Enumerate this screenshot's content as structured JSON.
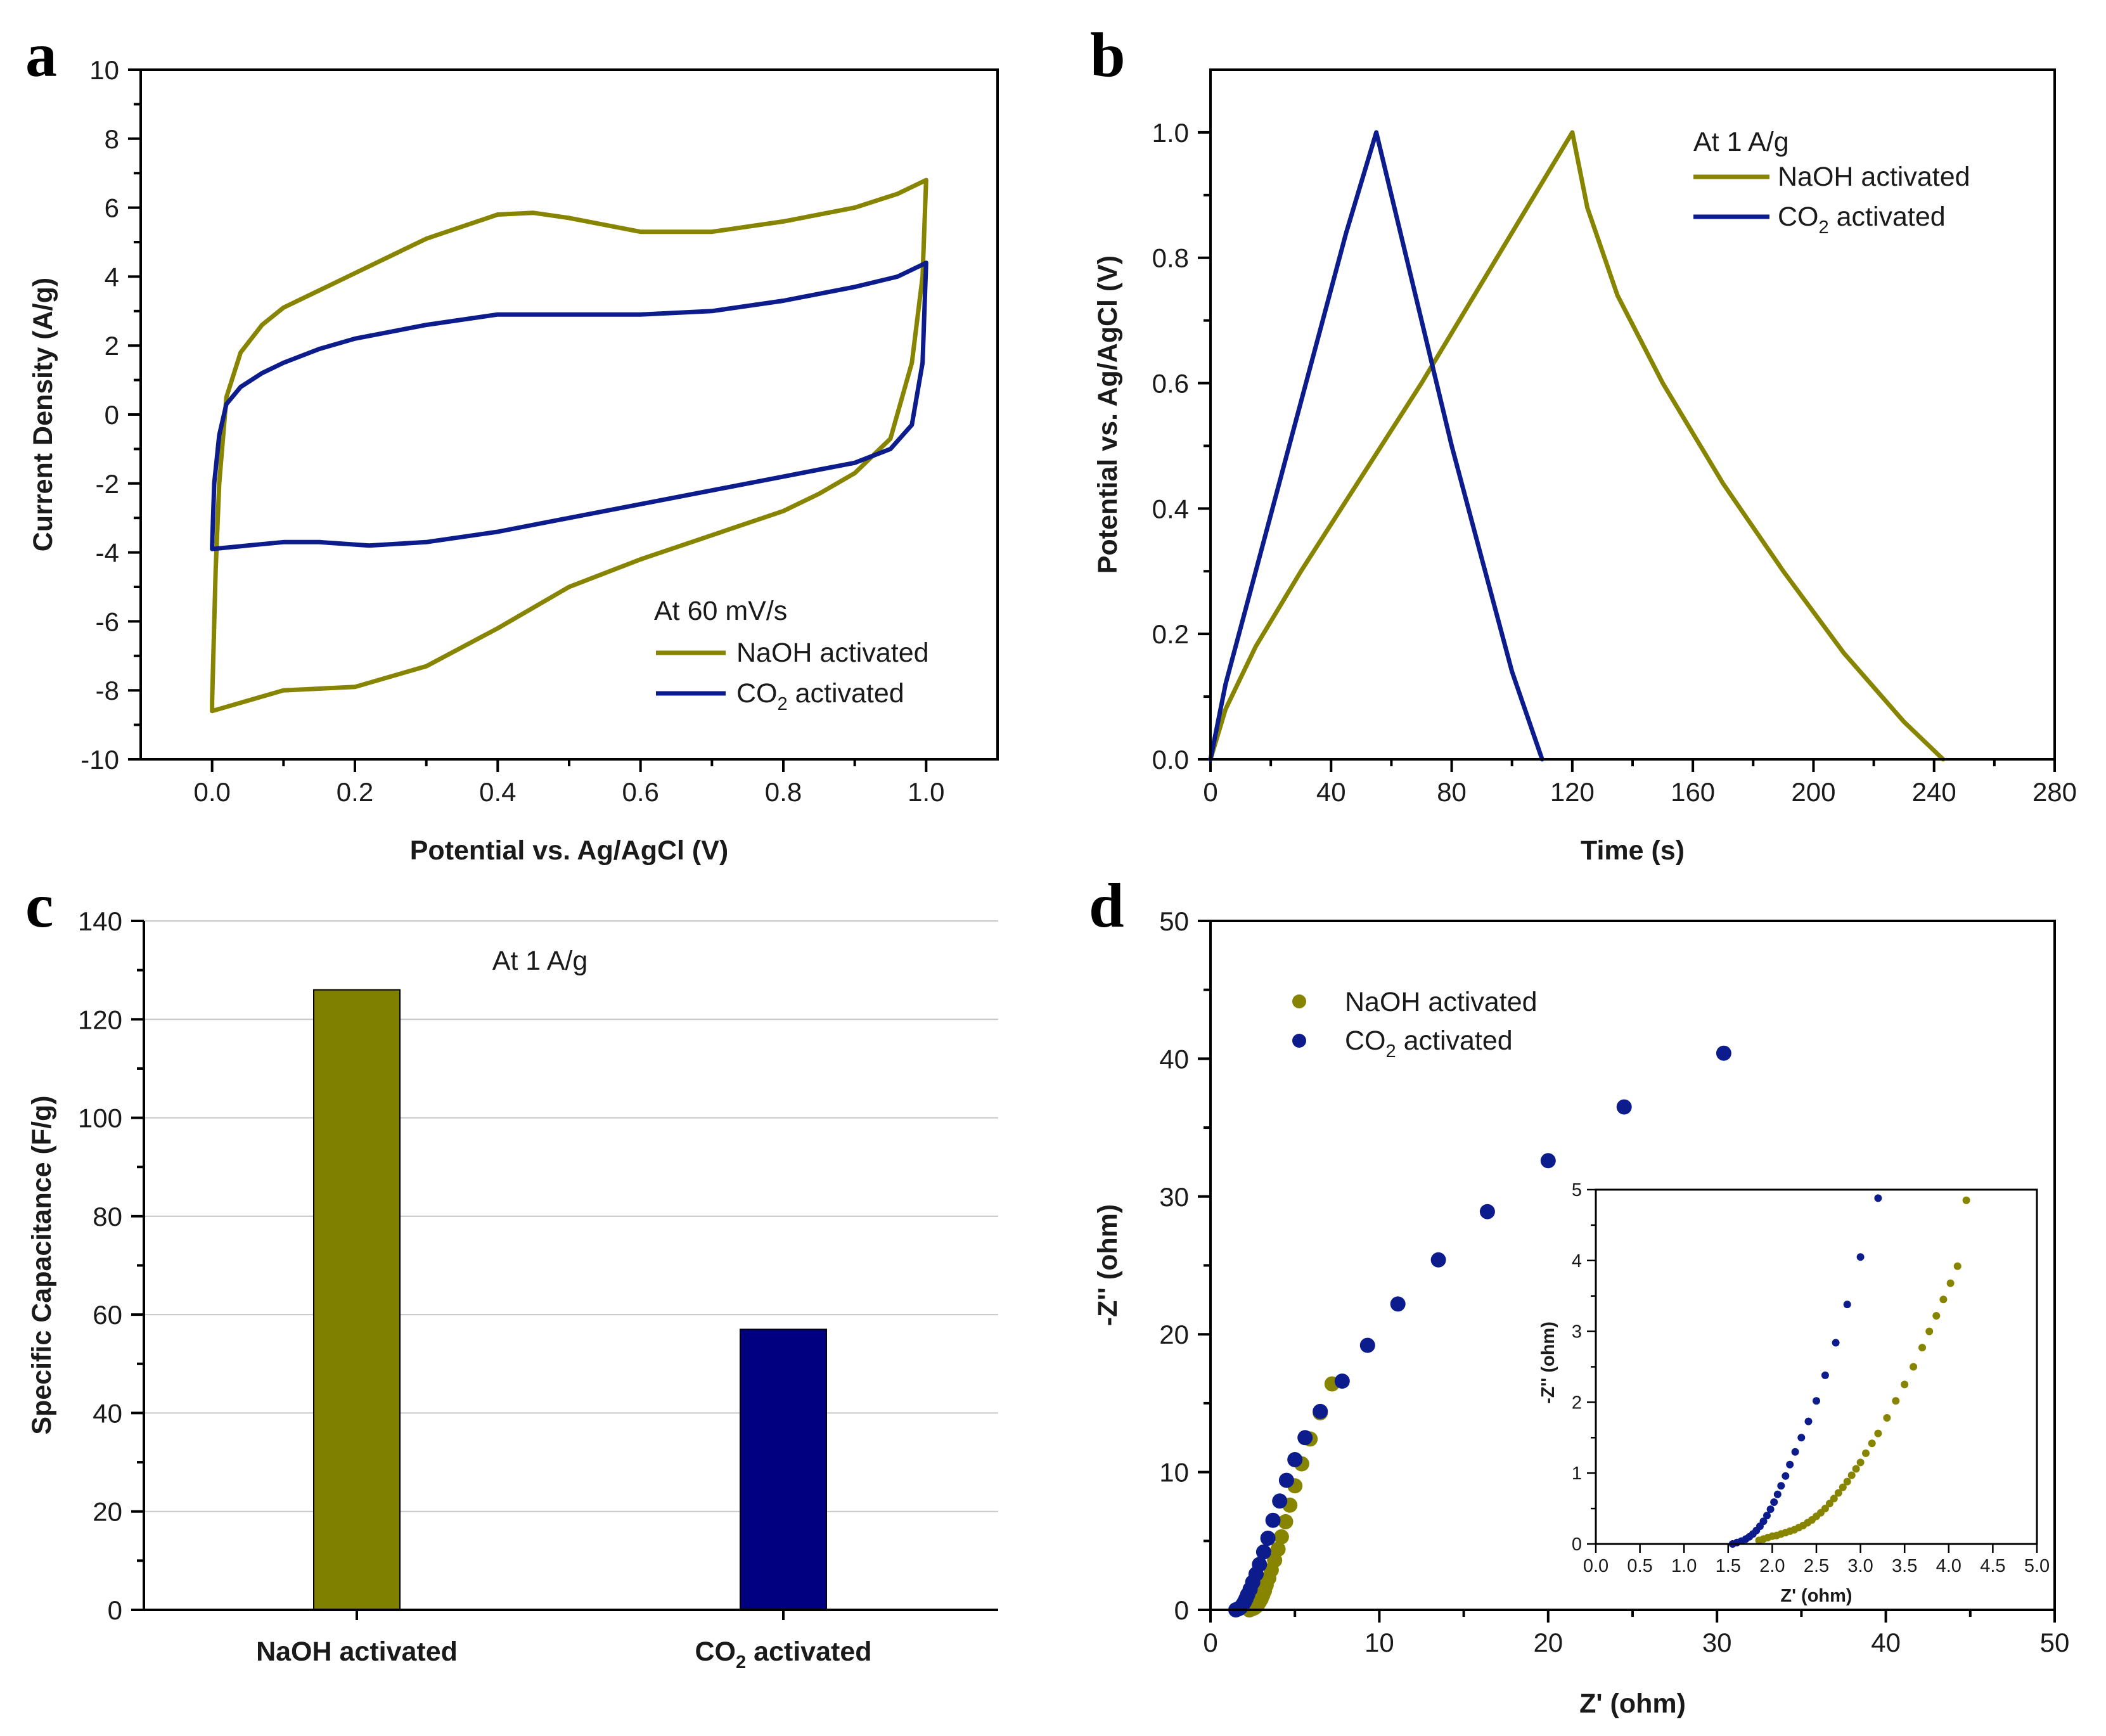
{
  "colors": {
    "naoh": "#878400",
    "co2": "#0d1c8c",
    "bar_naoh": "#808000",
    "bar_co2": "#000080"
  },
  "chart_data": [
    {
      "id": "a",
      "type": "line",
      "panel_label": "a",
      "xlabel": "Potential vs. Ag/AgCl (V)",
      "ylabel": "Current Density (A/g)",
      "xlim": [
        -0.1,
        1.1
      ],
      "ylim": [
        -10,
        10
      ],
      "xticks": [
        "0.0",
        "0.2",
        "0.4",
        "0.6",
        "0.8",
        "1.0"
      ],
      "yticks": [
        "-10",
        "-8",
        "-6",
        "-4",
        "-2",
        "0",
        "2",
        "4",
        "6",
        "8",
        "10"
      ],
      "legend_title": "At 60 mV/s",
      "series": [
        {
          "name": "NaOH activated",
          "color_key": "naoh",
          "x": [
            0.0,
            0.005,
            0.01,
            0.02,
            0.04,
            0.07,
            0.1,
            0.15,
            0.2,
            0.3,
            0.4,
            0.45,
            0.5,
            0.6,
            0.7,
            0.8,
            0.9,
            0.96,
            0.99,
            1.0,
            1.0,
            0.995,
            0.98,
            0.95,
            0.9,
            0.85,
            0.8,
            0.7,
            0.6,
            0.5,
            0.4,
            0.3,
            0.2,
            0.1,
            0.05,
            0.0,
            0.0
          ],
          "y": [
            -8.3,
            -4.5,
            -2.0,
            0.5,
            1.8,
            2.6,
            3.1,
            3.6,
            4.1,
            5.1,
            5.8,
            5.85,
            5.7,
            5.3,
            5.3,
            5.6,
            6.0,
            6.4,
            6.7,
            6.8,
            6.8,
            4.0,
            1.5,
            -0.7,
            -1.7,
            -2.3,
            -2.8,
            -3.5,
            -4.2,
            -5.0,
            -6.2,
            -7.3,
            -7.9,
            -8.0,
            -8.3,
            -8.6,
            -8.3
          ]
        },
        {
          "name": "CO2 activated",
          "label_main": "CO",
          "label_sub": "2",
          "label_tail": " activated",
          "color_key": "co2",
          "x": [
            0.0,
            0.003,
            0.01,
            0.02,
            0.04,
            0.07,
            0.1,
            0.15,
            0.2,
            0.3,
            0.4,
            0.5,
            0.6,
            0.7,
            0.8,
            0.9,
            0.96,
            0.99,
            1.0,
            1.0,
            0.995,
            0.98,
            0.95,
            0.9,
            0.85,
            0.8,
            0.7,
            0.6,
            0.5,
            0.4,
            0.3,
            0.22,
            0.15,
            0.1,
            0.05,
            0.0,
            0.0
          ],
          "y": [
            -3.8,
            -2.0,
            -0.6,
            0.3,
            0.8,
            1.2,
            1.5,
            1.9,
            2.2,
            2.6,
            2.9,
            2.9,
            2.9,
            3.0,
            3.3,
            3.7,
            4.0,
            4.3,
            4.4,
            4.4,
            1.5,
            -0.3,
            -1.0,
            -1.4,
            -1.6,
            -1.8,
            -2.2,
            -2.6,
            -3.0,
            -3.4,
            -3.7,
            -3.8,
            -3.7,
            -3.7,
            -3.8,
            -3.9,
            -3.8
          ]
        }
      ]
    },
    {
      "id": "b",
      "type": "line",
      "panel_label": "b",
      "xlabel": "Time (s)",
      "ylabel": "Potential vs. Ag/AgCl (V)",
      "xlim": [
        0,
        280
      ],
      "ylim": [
        0,
        1.1
      ],
      "xticks": [
        "0",
        "40",
        "80",
        "120",
        "160",
        "200",
        "240",
        "280"
      ],
      "yticks": [
        "0.0",
        "0.2",
        "0.4",
        "0.6",
        "0.8",
        "1.0"
      ],
      "legend_title": "At 1 A/g",
      "series": [
        {
          "name": "NaOH activated",
          "color_key": "naoh",
          "x": [
            0,
            5,
            15,
            30,
            50,
            70,
            90,
            110,
            120,
            125,
            135,
            150,
            170,
            190,
            210,
            230,
            243
          ],
          "y": [
            0.0,
            0.08,
            0.18,
            0.3,
            0.45,
            0.6,
            0.76,
            0.92,
            1.0,
            0.88,
            0.74,
            0.6,
            0.44,
            0.3,
            0.17,
            0.06,
            0.0
          ]
        },
        {
          "name": "CO2 activated",
          "label_main": "CO",
          "label_sub": "2",
          "label_tail": " activated",
          "color_key": "co2",
          "x": [
            0,
            5,
            15,
            25,
            35,
            45,
            55,
            60,
            65,
            70,
            80,
            90,
            100,
            110
          ],
          "y": [
            0.0,
            0.12,
            0.3,
            0.48,
            0.66,
            0.84,
            1.0,
            0.9,
            0.8,
            0.7,
            0.5,
            0.32,
            0.14,
            0.0
          ]
        }
      ]
    },
    {
      "id": "c",
      "type": "bar",
      "panel_label": "c",
      "xlabel": "",
      "ylabel": "Specific Capacitance (F/g)",
      "ylim": [
        0,
        140
      ],
      "yticks": [
        "0",
        "20",
        "40",
        "60",
        "80",
        "100",
        "120",
        "140"
      ],
      "annotation": "At 1 A/g",
      "categories": [
        "NaOH activated",
        "CO2 activated"
      ],
      "category_labels": [
        {
          "main": "NaOH activated",
          "sub": "",
          "tail": ""
        },
        {
          "main": "CO",
          "sub": "2",
          "tail": " activated"
        }
      ],
      "values": [
        126,
        57
      ],
      "color_keys": [
        "bar_naoh",
        "bar_co2"
      ]
    },
    {
      "id": "d",
      "type": "scatter",
      "panel_label": "d",
      "xlabel": "Z' (ohm)",
      "ylabel": "-Z'' (ohm)",
      "xlim": [
        0,
        50
      ],
      "ylim": [
        0,
        50
      ],
      "xticks": [
        "0",
        "10",
        "20",
        "30",
        "40",
        "50"
      ],
      "yticks": [
        "0",
        "10",
        "20",
        "30",
        "40",
        "50"
      ],
      "series": [
        {
          "name": "NaOH activated",
          "color_key": "naoh",
          "x": [
            2.3,
            2.4,
            2.5,
            2.6,
            2.7,
            2.8,
            2.9,
            3.0,
            3.1,
            3.2,
            3.3,
            3.45,
            3.6,
            3.8,
            4.0,
            4.2,
            4.45,
            4.7,
            5.0,
            5.4,
            5.9,
            6.5,
            7.2
          ],
          "y": [
            0.0,
            0.05,
            0.1,
            0.15,
            0.25,
            0.4,
            0.6,
            0.8,
            1.1,
            1.4,
            1.8,
            2.3,
            2.9,
            3.6,
            4.4,
            5.3,
            6.4,
            7.6,
            9.0,
            10.6,
            12.4,
            14.3,
            16.4
          ]
        },
        {
          "name": "CO2 activated",
          "label_main": "CO",
          "label_sub": "2",
          "label_tail": " activated",
          "color_key": "co2",
          "x": [
            1.5,
            1.6,
            1.7,
            1.8,
            1.9,
            2.0,
            2.1,
            2.2,
            2.35,
            2.5,
            2.7,
            2.9,
            3.15,
            3.4,
            3.7,
            4.1,
            4.5,
            5.0,
            5.6,
            6.5,
            7.8,
            9.3,
            11.1,
            13.5,
            16.4,
            20.0,
            24.5,
            30.4
          ],
          "y": [
            0.0,
            0.05,
            0.1,
            0.2,
            0.35,
            0.55,
            0.8,
            1.1,
            1.5,
            2.0,
            2.6,
            3.3,
            4.2,
            5.2,
            6.5,
            7.9,
            9.4,
            10.9,
            12.5,
            14.4,
            16.6,
            19.2,
            22.2,
            25.4,
            28.9,
            32.6,
            36.5,
            40.4
          ]
        }
      ],
      "inset": {
        "xlabel": "Z' (ohm)",
        "ylabel": "-Z'' (ohm)",
        "xlim": [
          0,
          5
        ],
        "ylim": [
          0,
          5
        ],
        "xticks": [
          "0.0",
          "0.5",
          "1.0",
          "1.5",
          "2.0",
          "2.5",
          "3.0",
          "3.5",
          "4.0",
          "4.5",
          "5.0"
        ],
        "yticks": [
          "0",
          "1",
          "2",
          "3",
          "4",
          "5"
        ],
        "series": [
          {
            "name": "NaOH activated",
            "color_key": "naoh",
            "x": [
              1.85,
              1.9,
              1.95,
              2.0,
              2.05,
              2.1,
              2.15,
              2.2,
              2.25,
              2.3,
              2.35,
              2.4,
              2.45,
              2.5,
              2.55,
              2.6,
              2.65,
              2.7,
              2.75,
              2.8,
              2.85,
              2.9,
              2.95,
              3.0,
              3.06,
              3.13,
              3.2,
              3.3,
              3.4,
              3.5,
              3.6,
              3.7,
              3.78,
              3.86,
              3.94,
              4.02,
              4.1,
              4.2
            ],
            "y": [
              0.05,
              0.07,
              0.09,
              0.11,
              0.12,
              0.14,
              0.16,
              0.18,
              0.2,
              0.23,
              0.26,
              0.3,
              0.34,
              0.39,
              0.44,
              0.5,
              0.57,
              0.64,
              0.72,
              0.8,
              0.88,
              0.97,
              1.06,
              1.15,
              1.28,
              1.42,
              1.56,
              1.78,
              2.02,
              2.25,
              2.5,
              2.77,
              3.0,
              3.22,
              3.45,
              3.68,
              3.92,
              4.85
            ]
          },
          {
            "name": "CO2 activated",
            "label_main": "CO",
            "label_sub": "2",
            "label_tail": " activated",
            "color_key": "co2",
            "x": [
              1.55,
              1.6,
              1.65,
              1.7,
              1.74,
              1.78,
              1.82,
              1.86,
              1.9,
              1.94,
              1.98,
              2.02,
              2.06,
              2.1,
              2.15,
              2.2,
              2.26,
              2.33,
              2.41,
              2.5,
              2.6,
              2.72,
              2.85,
              3.0,
              3.2
            ],
            "y": [
              0.0,
              0.02,
              0.04,
              0.07,
              0.1,
              0.14,
              0.19,
              0.25,
              0.32,
              0.4,
              0.49,
              0.59,
              0.7,
              0.82,
              0.96,
              1.12,
              1.3,
              1.5,
              1.73,
              2.02,
              2.38,
              2.84,
              3.38,
              4.05,
              4.88
            ]
          }
        ]
      }
    }
  ]
}
